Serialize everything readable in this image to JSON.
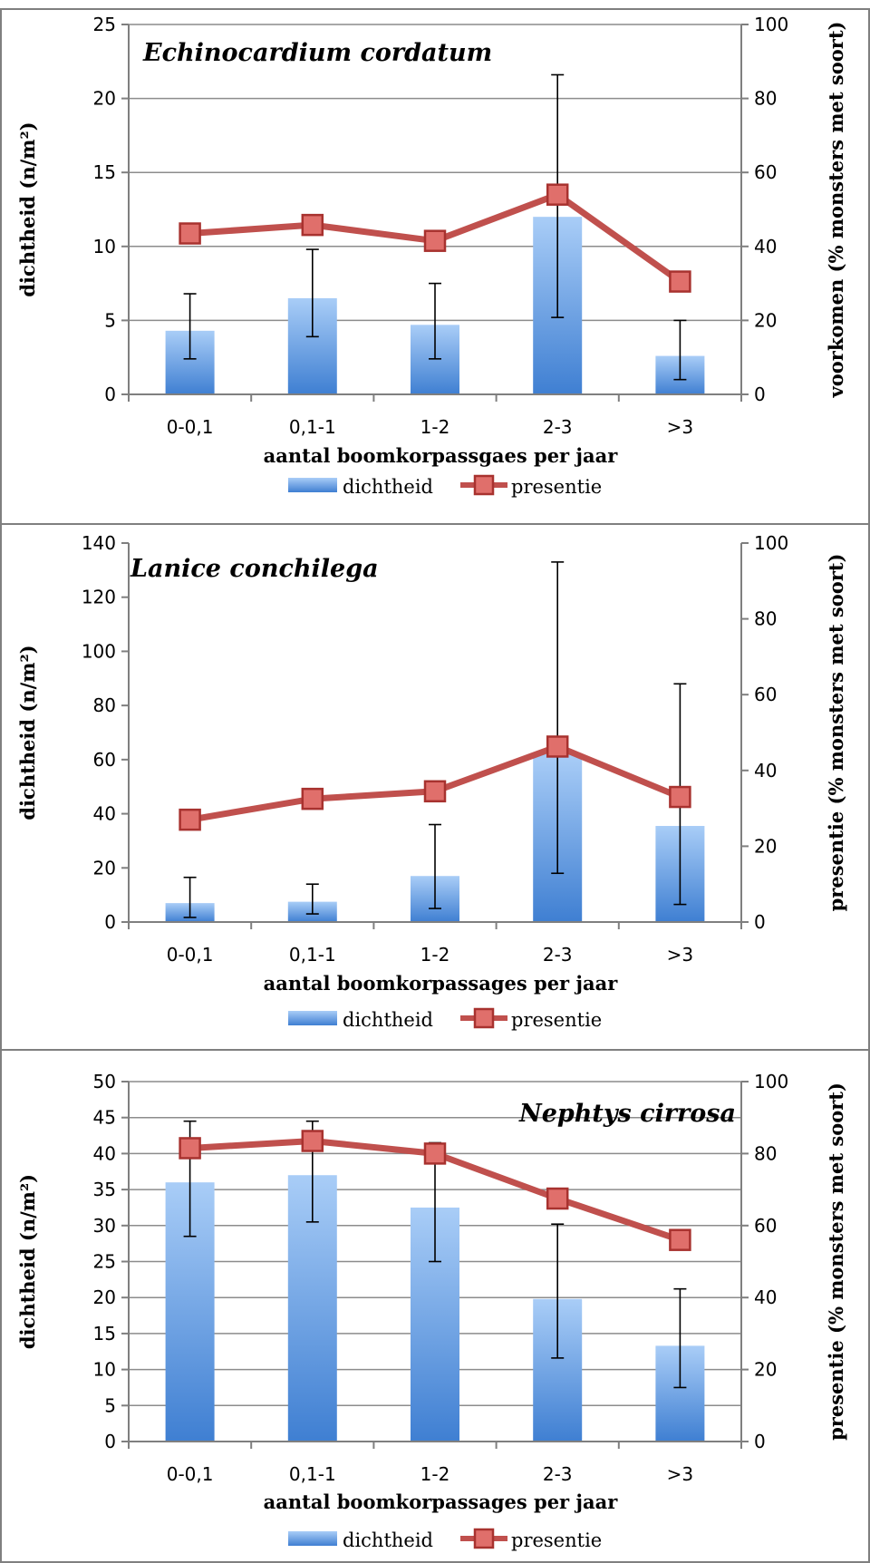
{
  "chart_data": [
    {
      "type": "bar",
      "title": "Echinocardium cordatum",
      "categories": [
        "0-0,1",
        "0,1-1",
        "1-2",
        "2-3",
        ">3"
      ],
      "xlabel": "aantal boomkorpassgaes per jaar",
      "ylabel": "dichtheid (n/m²)",
      "y2label": "voorkomen (% monsters met soort)",
      "ylim": [
        0,
        25
      ],
      "y2lim": [
        0,
        100
      ],
      "yticks": [
        0,
        5,
        10,
        15,
        20,
        25
      ],
      "y2ticks": [
        0,
        20,
        40,
        60,
        80,
        100
      ],
      "grid": true,
      "legend_placement": "bottom",
      "series": [
        {
          "name": "dichtheid",
          "kind": "bar",
          "axis": "left",
          "values": [
            4.3,
            6.5,
            4.7,
            12.0,
            2.6
          ],
          "err_low": [
            2.4,
            3.9,
            2.4,
            5.2,
            1.0
          ],
          "err_high": [
            6.8,
            9.8,
            7.5,
            21.6,
            5.0
          ],
          "color": "#5b8fd6"
        },
        {
          "name": "presentie",
          "kind": "line",
          "axis": "right",
          "values": [
            43.5,
            45.8,
            41.5,
            54.0,
            30.5
          ],
          "color": "#c0504d"
        }
      ]
    },
    {
      "type": "bar",
      "title": "Lanice conchilega",
      "categories": [
        "0-0,1",
        "0,1-1",
        "1-2",
        "2-3",
        ">3"
      ],
      "xlabel": "aantal boomkorpassages per jaar",
      "ylabel": "dichtheid (n/m²)",
      "y2label": "presentie (% monsters met soort)",
      "ylim": [
        0,
        140
      ],
      "y2lim": [
        0,
        100
      ],
      "yticks": [
        0,
        20,
        40,
        60,
        80,
        100,
        120,
        140
      ],
      "y2ticks": [
        0,
        20,
        40,
        60,
        80,
        100
      ],
      "grid": false,
      "legend_placement": "bottom",
      "series": [
        {
          "name": "dichtheid",
          "kind": "bar",
          "axis": "left",
          "values": [
            7.0,
            7.5,
            17.0,
            62.0,
            35.5
          ],
          "err_low": [
            1.7,
            3.0,
            5.0,
            18.0,
            6.5
          ],
          "err_high": [
            16.5,
            14.0,
            36.0,
            133.0,
            88.0
          ],
          "color": "#5b8fd6"
        },
        {
          "name": "presentie",
          "kind": "line",
          "axis": "right",
          "values": [
            27.0,
            32.5,
            34.5,
            46.3,
            33.0
          ],
          "color": "#c0504d"
        }
      ]
    },
    {
      "type": "bar",
      "title": "Nephtys cirrosa",
      "categories": [
        "0-0,1",
        "0,1-1",
        "1-2",
        "2-3",
        ">3"
      ],
      "xlabel": "aantal boomkorpassages per jaar",
      "ylabel": "dichtheid (n/m²)",
      "y2label": "presentie (% monsters met soort)",
      "ylim": [
        0,
        50
      ],
      "y2lim": [
        0,
        100
      ],
      "yticks": [
        0,
        5,
        10,
        15,
        20,
        25,
        30,
        35,
        40,
        45,
        50
      ],
      "y2ticks": [
        0,
        20,
        40,
        60,
        80,
        100
      ],
      "grid": true,
      "legend_placement": "bottom",
      "series": [
        {
          "name": "dichtheid",
          "kind": "bar",
          "axis": "left",
          "values": [
            36.0,
            37.0,
            32.5,
            19.8,
            13.3
          ],
          "err_low": [
            28.5,
            30.5,
            25.0,
            11.6,
            7.5
          ],
          "err_high": [
            44.5,
            44.5,
            41.5,
            30.2,
            21.2
          ],
          "color": "#5b8fd6"
        },
        {
          "name": "presentie",
          "kind": "line",
          "axis": "right",
          "values": [
            81.5,
            83.5,
            80.0,
            67.5,
            56.0
          ],
          "color": "#c0504d"
        }
      ]
    }
  ]
}
